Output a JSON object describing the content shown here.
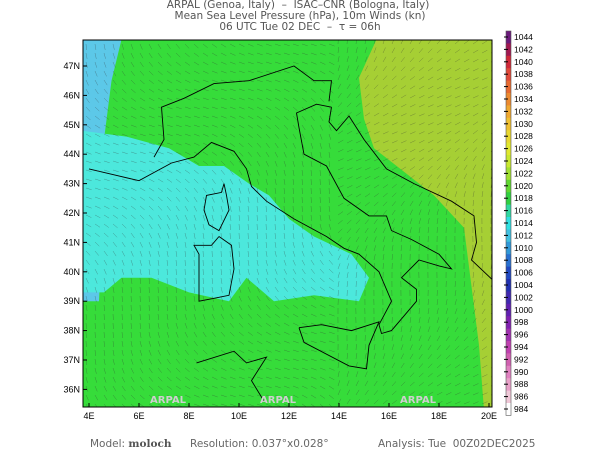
{
  "header": {
    "line1": "ARPAL (Genoa, Italy)  –  ISAC–CNR (Bologna, Italy)",
    "line2": "Mean Sea Level Pressure (hPa), 10m Winds (kn)",
    "line3": "06 UTC Tue 02 DEC  –  τ = 06h"
  },
  "map": {
    "lat_labels": [
      "47N",
      "46N",
      "45N",
      "44N",
      "43N",
      "42N",
      "41N",
      "40N",
      "39N",
      "38N",
      "37N",
      "36N"
    ],
    "lon_labels": [
      "4E",
      "6E",
      "8E",
      "10E",
      "12E",
      "14E",
      "16E",
      "18E",
      "20E"
    ],
    "watermark": "ARPAL",
    "field_colors": {
      "main": "#36dc3a",
      "low": "#4ce8dc",
      "west": "#5cc8e8",
      "high": "#a6cf34"
    }
  },
  "colorbar": {
    "labels": [
      "1044",
      "1042",
      "1040",
      "1038",
      "1036",
      "1034",
      "1032",
      "1030",
      "1028",
      "1026",
      "1024",
      "1022",
      "1020",
      "1018",
      "1016",
      "1014",
      "1012",
      "1010",
      "1008",
      "1006",
      "1004",
      "1002",
      "1000",
      "998",
      "996",
      "994",
      "992",
      "990",
      "988",
      "986",
      "984"
    ],
    "colors": [
      "#6a1a7a",
      "#a01850",
      "#d02838",
      "#e04838",
      "#e86a30",
      "#ec8a30",
      "#f0a830",
      "#f0c030",
      "#e8d830",
      "#e0e830",
      "#c8e830",
      "#a0e030",
      "#60d830",
      "#30d040",
      "#30d8a0",
      "#30e0e0",
      "#40c0e0",
      "#3098d8",
      "#2870d0",
      "#2048c0",
      "#2030b0",
      "#4028b0",
      "#6020b0",
      "#8020b0",
      "#a030b0",
      "#c040b0",
      "#d060b0",
      "#e080c0",
      "#e8a0c8",
      "#f0c8d8",
      "#ffffff"
    ]
  },
  "footer": {
    "model_label": "Model:",
    "model_value": "moloch",
    "resolution": "Resolution: 0.037°x0.028°",
    "analysis": "Analysis: Tue  00Z02DEC2025"
  }
}
